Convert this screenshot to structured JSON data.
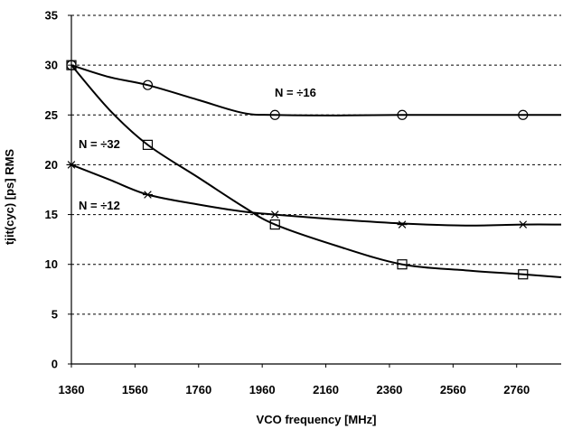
{
  "chart_data": {
    "type": "line",
    "xlabel": "VCO frequency [MHz]",
    "ylabel": "tjit(cyc) [ps] RMS",
    "xlim": [
      1360,
      2900
    ],
    "ylim": [
      0,
      35
    ],
    "xticks": [
      1360,
      1560,
      1760,
      1960,
      2160,
      2360,
      2560,
      2760
    ],
    "yticks": [
      0,
      5,
      10,
      15,
      20,
      25,
      30,
      35
    ],
    "grid": "horizontal dashed",
    "series": [
      {
        "name": "N = ÷16",
        "marker": "circle",
        "points": [
          [
            1360,
            30
          ],
          [
            1600,
            28
          ],
          [
            2000,
            25
          ],
          [
            2400,
            25
          ],
          [
            2780,
            25
          ]
        ],
        "curve": [
          [
            1360,
            30
          ],
          [
            1480,
            28.8
          ],
          [
            1600,
            28
          ],
          [
            1760,
            26.5
          ],
          [
            1900,
            25.2
          ],
          [
            2000,
            25
          ],
          [
            2200,
            24.95
          ],
          [
            2400,
            25
          ],
          [
            2600,
            25
          ],
          [
            2780,
            25
          ],
          [
            2900,
            25
          ]
        ]
      },
      {
        "name": "N = ÷32",
        "marker": "square",
        "points": [
          [
            1360,
            30
          ],
          [
            1600,
            22
          ],
          [
            2000,
            14
          ],
          [
            2400,
            10
          ],
          [
            2780,
            9
          ]
        ],
        "curve": [
          [
            1360,
            30
          ],
          [
            1480,
            25.5
          ],
          [
            1600,
            22
          ],
          [
            1760,
            18.7
          ],
          [
            1900,
            15.8
          ],
          [
            2000,
            14
          ],
          [
            2200,
            11.8
          ],
          [
            2400,
            10
          ],
          [
            2600,
            9.4
          ],
          [
            2780,
            9
          ],
          [
            2900,
            8.7
          ]
        ]
      },
      {
        "name": "N = ÷12",
        "marker": "asterisk",
        "points": [
          [
            1360,
            20
          ],
          [
            1600,
            17
          ],
          [
            2000,
            15
          ],
          [
            2400,
            14
          ],
          [
            2780,
            14
          ]
        ],
        "curve": [
          [
            1360,
            20
          ],
          [
            1480,
            18.5
          ],
          [
            1600,
            17
          ],
          [
            1760,
            16
          ],
          [
            1900,
            15.3
          ],
          [
            2000,
            15
          ],
          [
            2200,
            14.5
          ],
          [
            2400,
            14.1
          ],
          [
            2600,
            13.9
          ],
          [
            2780,
            14
          ],
          [
            2900,
            14
          ]
        ]
      }
    ]
  }
}
